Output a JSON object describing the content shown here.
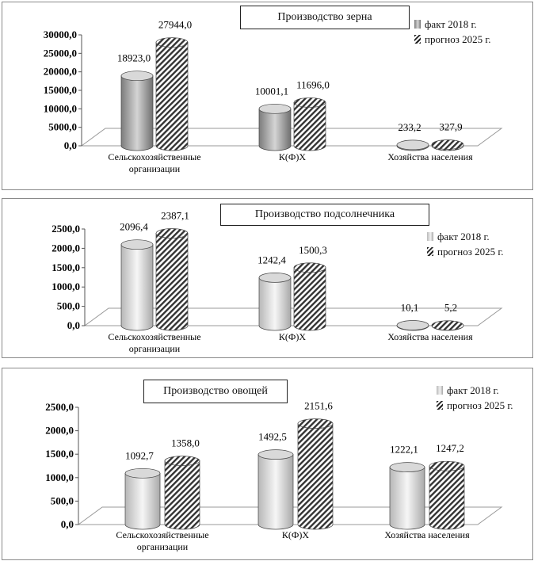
{
  "chart_data": [
    {
      "type": "bar",
      "title": "Производство зерна",
      "categories": [
        "Сельскохозяйственные организации",
        "К(Ф)Х",
        "Хозяйства населения"
      ],
      "category_lines": [
        [
          "Сельскохозяйственные",
          "организации"
        ],
        [
          "К(Ф)Х"
        ],
        [
          "Хозяйства населения"
        ]
      ],
      "series": [
        {
          "name": "факт 2018 г.",
          "values": [
            18923.0,
            10001.1,
            233.2
          ],
          "labels": [
            "18923,0",
            "10001,1",
            "233,2"
          ],
          "color": "#b0b0b0"
        },
        {
          "name": "прогноз 2025 г.",
          "values": [
            27944.0,
            11696.0,
            327.9
          ],
          "labels": [
            "27944,0",
            "11696,0",
            "327,9"
          ],
          "color": "#333333"
        }
      ],
      "ylim": [
        0,
        30000
      ],
      "yticks": [
        "0,0",
        "5000,0",
        "10000,0",
        "15000,0",
        "20000,0",
        "25000,0",
        "30000,0"
      ],
      "legend_position": "top-right",
      "grid": false
    },
    {
      "type": "bar",
      "title": "Производство подсолнечника",
      "categories": [
        "Сельскохозяйственные организации",
        "К(Ф)Х",
        "Хозяйства населения"
      ],
      "category_lines": [
        [
          "Сельскохозяйственные",
          "организации"
        ],
        [
          "К(Ф)Х"
        ],
        [
          "Хозяйства населения"
        ]
      ],
      "series": [
        {
          "name": "факт 2018 г.",
          "values": [
            2096.4,
            1242.4,
            10.1
          ],
          "labels": [
            "2096,4",
            "1242,4",
            "10,1"
          ],
          "color": "#e0e0e0"
        },
        {
          "name": "прогноз 2025 г.",
          "values": [
            2387.1,
            1500.3,
            5.2
          ],
          "labels": [
            "2387,1",
            "1500,3",
            "5,2"
          ],
          "color": "#333333"
        }
      ],
      "ylim": [
        0,
        2500
      ],
      "yticks": [
        "0,0",
        "500,0",
        "1000,0",
        "1500,0",
        "2000,0",
        "2500,0"
      ],
      "legend_position": "right",
      "grid": false
    },
    {
      "type": "bar",
      "title": "Производство овощей",
      "categories": [
        "Сельскохозяйственные организации",
        "К(Ф)Х",
        "Хозяйства населения"
      ],
      "category_lines": [
        [
          "Сельскохозяйственные",
          "организации"
        ],
        [
          "К(Ф)Х"
        ],
        [
          "Хозяйства населения"
        ]
      ],
      "series": [
        {
          "name": "факт 2018 г.",
          "values": [
            1092.7,
            1492.5,
            1222.1
          ],
          "labels": [
            "1092,7",
            "1492,5",
            "1222,1"
          ],
          "color": "#e0e0e0"
        },
        {
          "name": "прогноз 2025 г.",
          "values": [
            1358.0,
            2151.6,
            1247.2
          ],
          "labels": [
            "1358,0",
            "2151,6",
            "1247,2"
          ],
          "color": "#333333"
        }
      ],
      "ylim": [
        0,
        2500
      ],
      "yticks": [
        "0,0",
        "500,0",
        "1000,0",
        "1500,0",
        "2000,0",
        "2500,0"
      ],
      "legend_position": "top-right",
      "grid": false
    }
  ]
}
